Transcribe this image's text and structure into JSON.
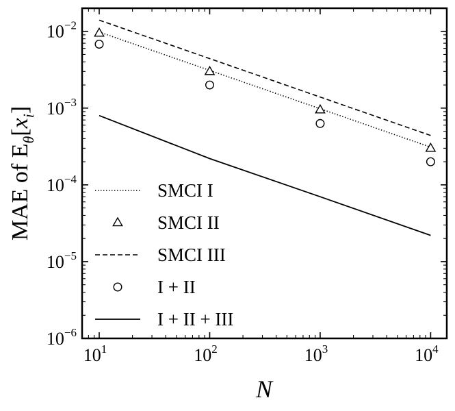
{
  "chart_data": {
    "type": "line",
    "title": "",
    "xlabel": "N",
    "ylabel": "MAE of E_θ[x_i]",
    "ylabel_parts": {
      "prefix": "MAE of E",
      "sub_theta": "θ",
      "bracket_open": "[",
      "x": "x",
      "sub_i": "i",
      "bracket_close": "]"
    },
    "x_scale": "log",
    "y_scale": "log",
    "xlim": [
      7,
      14000
    ],
    "ylim": [
      1e-06,
      0.02
    ],
    "x_ticks": [
      {
        "value": 10,
        "base": "10",
        "exp": "1"
      },
      {
        "value": 100,
        "base": "10",
        "exp": "2"
      },
      {
        "value": 1000,
        "base": "10",
        "exp": "3"
      },
      {
        "value": 10000,
        "base": "10",
        "exp": "4"
      }
    ],
    "y_ticks": [
      {
        "value": 1e-06,
        "base": "10",
        "exp": "−6"
      },
      {
        "value": 1e-05,
        "base": "10",
        "exp": "−5"
      },
      {
        "value": 0.0001,
        "base": "10",
        "exp": "−4"
      },
      {
        "value": 0.001,
        "base": "10",
        "exp": "−3"
      },
      {
        "value": 0.01,
        "base": "10",
        "exp": "−2"
      }
    ],
    "grid": false,
    "legend_position": "lower-left",
    "series": [
      {
        "name": "SMCI I",
        "style": "dotted-line",
        "x": [
          10,
          10000
        ],
        "y": [
          0.0098,
          0.00031
        ]
      },
      {
        "name": "SMCI II",
        "style": "triangle-marker",
        "x": [
          10,
          100,
          1000,
          10000
        ],
        "y": [
          0.0095,
          0.003,
          0.00095,
          0.0003
        ]
      },
      {
        "name": "SMCI III",
        "style": "dashed-line",
        "x": [
          10,
          10000
        ],
        "y": [
          0.014,
          0.00044
        ]
      },
      {
        "name": "I + II",
        "style": "circle-marker",
        "x": [
          10,
          100,
          1000,
          10000
        ],
        "y": [
          0.0068,
          0.002,
          0.00063,
          0.0002
        ]
      },
      {
        "name": "I + II + III",
        "style": "solid-line",
        "x": [
          10,
          100,
          1000,
          10000
        ],
        "y": [
          0.0008,
          0.00022,
          7e-05,
          2.2e-05
        ]
      }
    ]
  }
}
